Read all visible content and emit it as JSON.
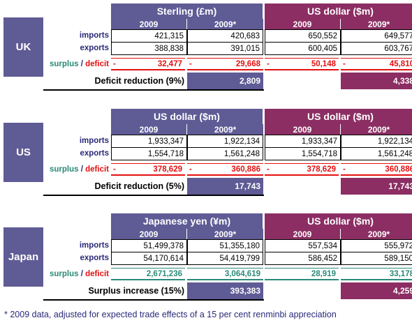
{
  "sections": [
    {
      "country": "UK",
      "left_header": "Sterling (£m)",
      "right_header": "US dollar ($m)",
      "years": [
        "2009",
        "2009*"
      ],
      "rows": [
        {
          "label": "imports",
          "left": [
            "421,315",
            "420,683"
          ],
          "right": [
            "650,552",
            "649,577"
          ]
        },
        {
          "label": "exports",
          "left": [
            "388,838",
            "391,015"
          ],
          "right": [
            "600,405",
            "603,767"
          ]
        }
      ],
      "balance": {
        "left": [
          "32,477",
          "29,668"
        ],
        "right": [
          "50,148",
          "45,810"
        ],
        "negative": true
      },
      "reduction": {
        "label": "Deficit reduction (9%)",
        "left": "2,809",
        "right": "4,338"
      }
    },
    {
      "country": "US",
      "left_header": "US dollar ($m)",
      "right_header": "US dollar ($m)",
      "years": [
        "2009",
        "2009*"
      ],
      "rows": [
        {
          "label": "imports",
          "left": [
            "1,933,347",
            "1,922,134"
          ],
          "right": [
            "1,933,347",
            "1,922,134"
          ]
        },
        {
          "label": "exports",
          "left": [
            "1,554,718",
            "1,561,248"
          ],
          "right": [
            "1,554,718",
            "1,561,248"
          ]
        }
      ],
      "balance": {
        "left": [
          "378,629",
          "360,886"
        ],
        "right": [
          "378,629",
          "360,886"
        ],
        "negative": true
      },
      "reduction": {
        "label": "Deficit reduction (5%)",
        "left": "17,743",
        "right": "17,743"
      }
    },
    {
      "country": "Japan",
      "left_header": "Japanese yen (¥m)",
      "right_header": "US dollar ($m)",
      "years": [
        "2009",
        "2009*"
      ],
      "rows": [
        {
          "label": "imports",
          "left": [
            "51,499,378",
            "51,355,180"
          ],
          "right": [
            "557,534",
            "555,972"
          ]
        },
        {
          "label": "exports",
          "left": [
            "54,170,614",
            "54,419,799"
          ],
          "right": [
            "586,452",
            "589,150"
          ]
        }
      ],
      "balance": {
        "left": [
          "2,671,236",
          "3,064,619"
        ],
        "right": [
          "28,919",
          "33,178"
        ],
        "negative": false
      },
      "reduction": {
        "label": "Surplus increase (15%)",
        "left": "393,383",
        "right": "4,259"
      }
    }
  ],
  "surplus_word": "surplus",
  "slash": " / ",
  "deficit_word": "deficit",
  "minus_sign": "-",
  "footnote": "* 2009 data, adjusted for expected trade effects of a 15 per cent renminbi appreciation",
  "colors": {
    "blue": "#5f5b95",
    "magenta": "#8c2e63",
    "red": "#e31010",
    "green": "#2a8a78"
  }
}
